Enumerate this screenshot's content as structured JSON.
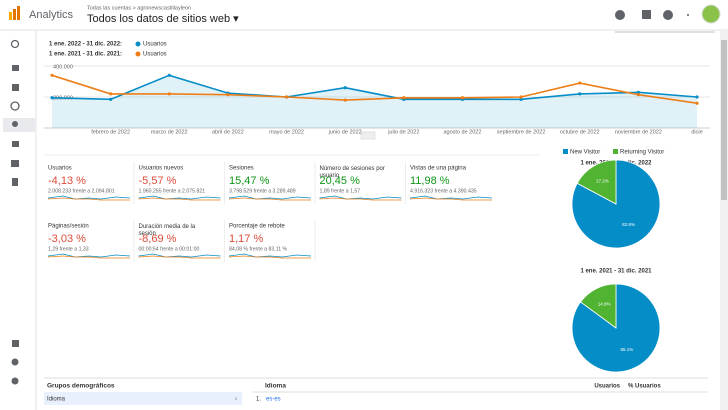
{
  "header": {
    "app": "Analytics",
    "breadcrumb": "Todas las cuentas > agronewscastillayleon",
    "view": "Todos los datos de sitios web ▾"
  },
  "chart_data": [
    {
      "type": "line",
      "categories": [
        null,
        "febrero de 2022",
        "marzo de 2022",
        "abril de 2022",
        "mayo de 2022",
        "junio de 2022",
        "julio de 2022",
        "agosto de 2022",
        "septiembre de 2022",
        "octubre de 2022",
        "noviembre de 2022",
        "dicie"
      ],
      "series": [
        {
          "name": "Usuarios",
          "period": "1 ene. 2022 - 31 dic. 2022:",
          "color": "#058dc7",
          "values": [
            195000,
            185000,
            340000,
            225000,
            200000,
            260000,
            185000,
            185000,
            185000,
            220000,
            230000,
            200000
          ]
        },
        {
          "name": "Usuarios",
          "period": "1 ene. 2021 - 31 dic. 2021:",
          "color": "#ed7e17",
          "values": [
            340000,
            220000,
            220000,
            215000,
            200000,
            180000,
            195000,
            195000,
            200000,
            290000,
            215000,
            160000
          ]
        }
      ],
      "ylim": [
        0,
        400000
      ],
      "yticks": [
        {
          "value": 200000,
          "label": "200.000"
        },
        {
          "value": 400000,
          "label": "400.000"
        }
      ]
    },
    {
      "type": "pie",
      "title": "1 ene. 2022 - 31 dic. 2022",
      "categories": [
        "New Visitor",
        "Returning Visitor"
      ],
      "values": [
        82.8,
        17.2
      ],
      "value_labels": [
        "82.8%",
        "17.2%"
      ],
      "colors": [
        "#058dc7",
        "#50b432"
      ]
    },
    {
      "type": "pie",
      "title": "1 ene. 2021 - 31 dic. 2021",
      "values": [
        85.1,
        14.9
      ],
      "value_labels": [
        "85.1%",
        "14.9%"
      ],
      "colors": [
        "#058dc7",
        "#50b432"
      ]
    }
  ],
  "metrics": [
    {
      "name": "Usuarios",
      "change": "-4,13 %",
      "compare": "2.008.233 frente a 2.094.801",
      "color": "#dd4b39"
    },
    {
      "name": "Usuarios nuevos",
      "change": "-5,57 %",
      "compare": "1.960.255 frente a 2.075.821",
      "color": "#dd4b39"
    },
    {
      "name": "Sesiones",
      "change": "15,47 %",
      "compare": "3.798.529 frente a 3.289.489",
      "color": "#109618"
    },
    {
      "name": "Número de sesiones por usuario",
      "change": "20,45 %",
      "compare": "1,89 frente a 1,57",
      "color": "#109618"
    },
    {
      "name": "Vistas de una página",
      "change": "11,98 %",
      "compare": "4.916.323 frente a 4.390.435",
      "color": "#109618"
    },
    {
      "name": "Páginas/sesión",
      "change": "-3,03 %",
      "compare": "1,29 frente a 1,33",
      "color": "#dd4b39"
    },
    {
      "name": "Duración media de la sesión",
      "change": "-8,69 %",
      "compare": "00:00:54 frente a 00:01:00",
      "color": "#dd4b39"
    },
    {
      "name": "Porcentaje de rebote",
      "change": "1,17 %",
      "compare": "84,08 % frente a 83,11 %",
      "color": "#dd4b39"
    }
  ],
  "bottom": {
    "section": "Grupos demográficos",
    "selected": "Idioma",
    "table": {
      "columns": [
        "Idioma",
        "Usuarios",
        "% Usuarios"
      ],
      "rows": [
        [
          "1.",
          "es-es"
        ]
      ]
    }
  }
}
